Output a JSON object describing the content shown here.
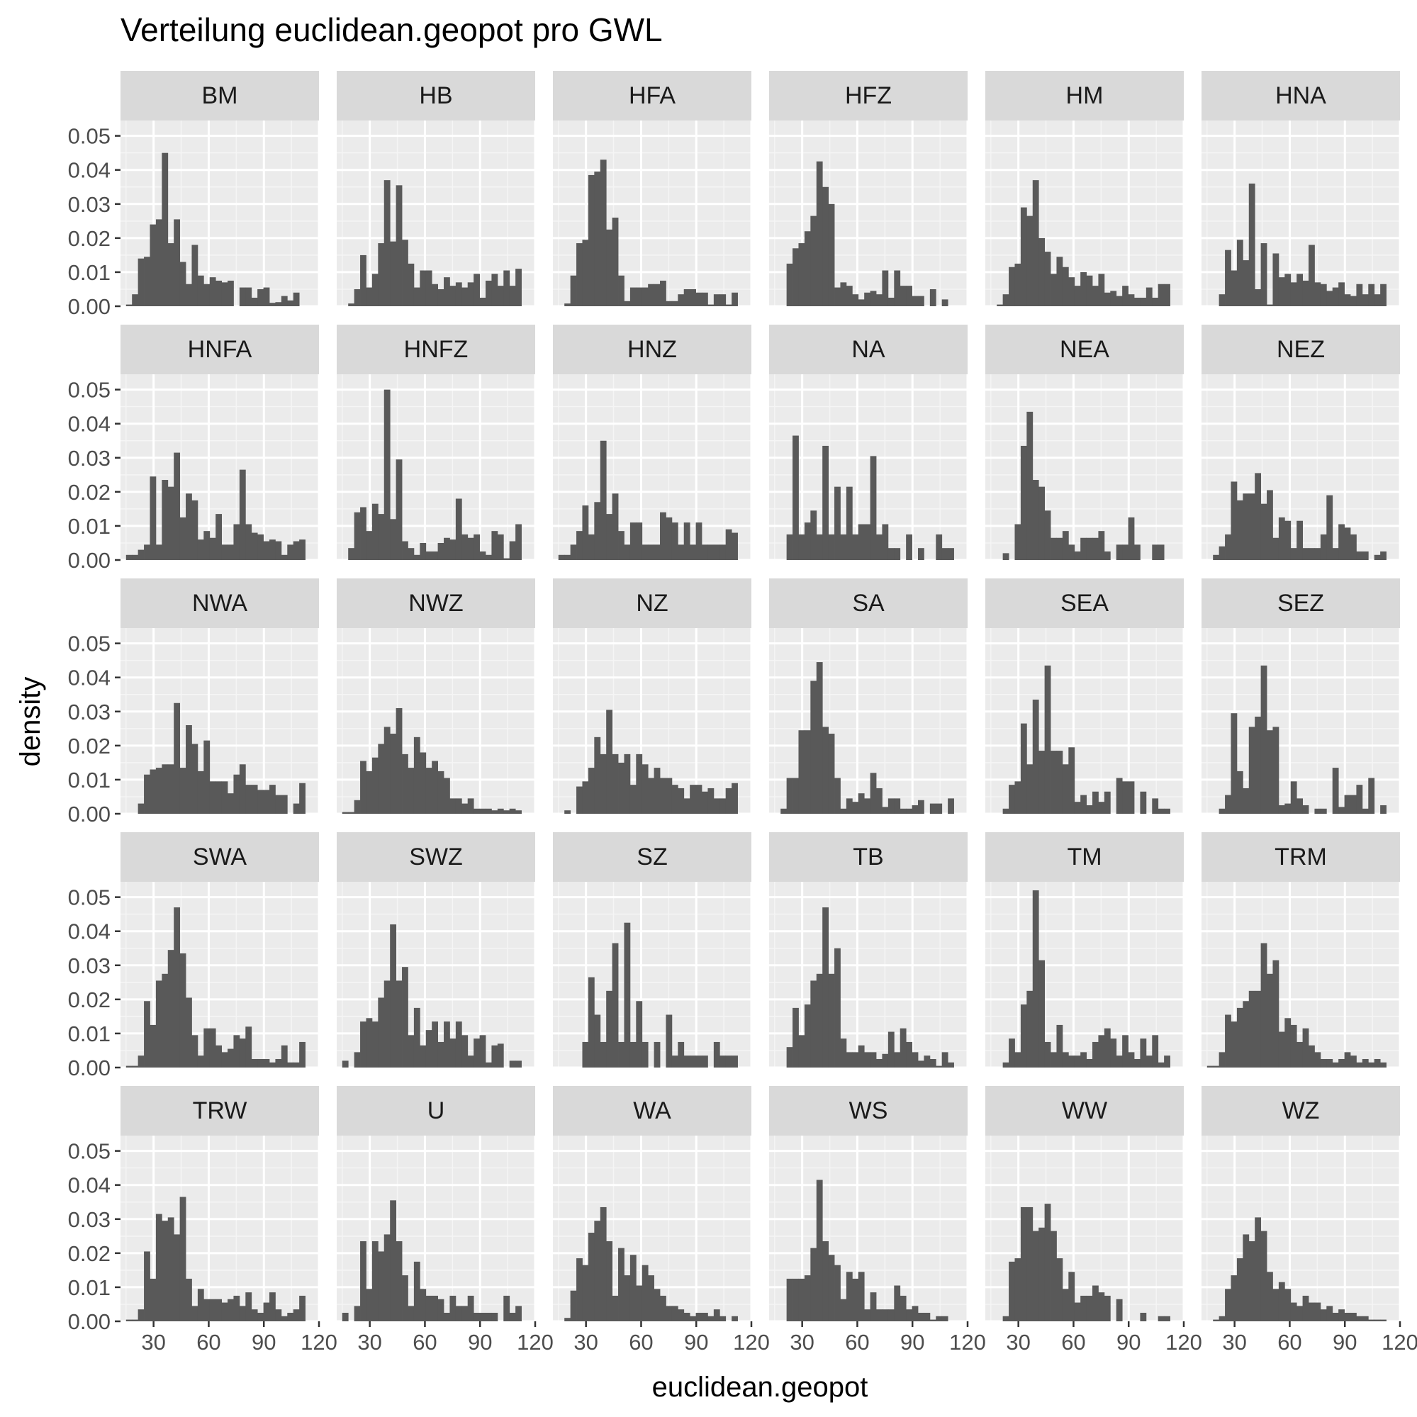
{
  "chart_data": {
    "type": "histogram-facets",
    "title": "Verteilung euclidean.geopot pro GWL",
    "xlabel": "euclidean.geopot",
    "ylabel": "density",
    "xlim": [
      12,
      120
    ],
    "ylim": [
      0,
      0.05
    ],
    "x_ticks": [
      30,
      60,
      90,
      120
    ],
    "x_tick_labels": [
      "30",
      "60",
      "90",
      "120"
    ],
    "y_ticks": [
      0,
      0.01,
      0.02,
      0.03,
      0.04,
      0.05
    ],
    "y_tick_labels": [
      "0.00",
      "0.01",
      "0.02",
      "0.03",
      "0.04",
      "0.05"
    ],
    "bins": {
      "start": 15,
      "width": 3.25,
      "count": 30
    },
    "bar_color": "#595959",
    "panel_color": "#ebebeb",
    "strip_color": "#d9d9d9",
    "facets": [
      {
        "label": "BM",
        "densities": [
          0.0005,
          0.0035,
          0.014,
          0.0145,
          0.024,
          0.0255,
          0.045,
          0.0185,
          0.0255,
          0.013,
          0.0065,
          0.018,
          0.009,
          0.0065,
          0.0085,
          0.0075,
          0.007,
          0.0075,
          0,
          0.0055,
          0.0055,
          0.0025,
          0.005,
          0.0055,
          0.001,
          0.0012,
          0.003,
          0.0017,
          0.004,
          0
        ]
      },
      {
        "label": "HB",
        "densities": [
          0,
          0.0008,
          0.005,
          0.015,
          0.0055,
          0.0095,
          0.0185,
          0.037,
          0.019,
          0.0355,
          0.0195,
          0.0125,
          0.0055,
          0.0105,
          0.0105,
          0.0065,
          0.005,
          0.0085,
          0.006,
          0.007,
          0.0055,
          0.007,
          0.0095,
          0.0025,
          0.0075,
          0.0095,
          0.006,
          0.0105,
          0.006,
          0.011
        ]
      },
      {
        "label": "HFA",
        "densities": [
          0,
          0.0008,
          0.009,
          0.0185,
          0.0195,
          0.0385,
          0.0395,
          0.043,
          0.0225,
          0.026,
          0.009,
          0.0015,
          0.0055,
          0.0055,
          0.0055,
          0.0065,
          0.0065,
          0.0075,
          0.0015,
          0.0015,
          0.0035,
          0.005,
          0.005,
          0.004,
          0.004,
          0.0005,
          0.0035,
          0.0035,
          0.0005,
          0.004
        ]
      },
      {
        "label": "HFZ",
        "densities": [
          0,
          0,
          0.0125,
          0.017,
          0.0185,
          0.022,
          0.0265,
          0.0425,
          0.035,
          0.03,
          0.0055,
          0.007,
          0.006,
          0.0035,
          0.002,
          0.004,
          0.0045,
          0.0035,
          0.0105,
          0.0025,
          0.0105,
          0.006,
          0.006,
          0.003,
          0.003,
          0,
          0.005,
          0,
          0.002,
          0
        ]
      },
      {
        "label": "HM",
        "densities": [
          0,
          0.0005,
          0.0035,
          0.0115,
          0.0125,
          0.029,
          0.0265,
          0.037,
          0.02,
          0.016,
          0.0095,
          0.0145,
          0.0115,
          0.0085,
          0.006,
          0.01,
          0.009,
          0.006,
          0.0095,
          0.004,
          0.0045,
          0.003,
          0.006,
          0.0035,
          0.0025,
          0.0025,
          0.0055,
          0.0025,
          0.0065,
          0.0065
        ]
      },
      {
        "label": "HNA",
        "densities": [
          0,
          0,
          0.0035,
          0.0165,
          0.0105,
          0.0195,
          0.0135,
          0.036,
          0.005,
          0.0185,
          0.0005,
          0.0155,
          0.0085,
          0.0095,
          0.007,
          0.0095,
          0.0075,
          0.018,
          0.007,
          0.0065,
          0.0045,
          0.0055,
          0.007,
          0.0035,
          0.003,
          0.0065,
          0.0035,
          0.0065,
          0.0035,
          0.0065
        ]
      },
      {
        "label": "HNFA",
        "densities": [
          0.0015,
          0.0015,
          0.003,
          0.0045,
          0.0245,
          0.0045,
          0.0235,
          0.0215,
          0.0315,
          0.0125,
          0.0195,
          0.0175,
          0.006,
          0.0085,
          0.0065,
          0.0135,
          0.0045,
          0.0045,
          0.0105,
          0.0265,
          0.0105,
          0.008,
          0.0075,
          0.0055,
          0.006,
          0.0055,
          0.0015,
          0.0045,
          0.0055,
          0.006
        ]
      },
      {
        "label": "HNFZ",
        "densities": [
          0,
          0.0035,
          0.014,
          0.0155,
          0.0085,
          0.0165,
          0.0135,
          0.05,
          0.012,
          0.0295,
          0.0055,
          0.0035,
          0.0015,
          0.005,
          0.0025,
          0.0025,
          0.005,
          0.0065,
          0.006,
          0.018,
          0.0075,
          0.0065,
          0.0075,
          0.0025,
          0.0015,
          0.0085,
          0.0075,
          0.0005,
          0.0055,
          0.0105
        ]
      },
      {
        "label": "HNZ",
        "densities": [
          0.0015,
          0.0015,
          0.0045,
          0.0085,
          0.016,
          0.0075,
          0.017,
          0.035,
          0.0135,
          0.0195,
          0.0085,
          0.0045,
          0.011,
          0.011,
          0.0045,
          0.0045,
          0.0045,
          0.014,
          0.0125,
          0.011,
          0.0045,
          0.011,
          0.0045,
          0.011,
          0.0045,
          0.0045,
          0.0045,
          0.0045,
          0.009,
          0.008
        ]
      },
      {
        "label": "NA",
        "densities": [
          0,
          0,
          0.0075,
          0.0365,
          0.0075,
          0.011,
          0.0145,
          0.0075,
          0.0335,
          0.0075,
          0.0215,
          0.0075,
          0.0215,
          0.0075,
          0.0105,
          0.0105,
          0.0305,
          0.0075,
          0.0105,
          0.0035,
          0.0035,
          0,
          0.0075,
          0,
          0.0035,
          0,
          0,
          0.0075,
          0.0035,
          0.0035
        ]
      },
      {
        "label": "NEA",
        "densities": [
          0,
          0,
          0.002,
          0,
          0.0105,
          0.0335,
          0.0435,
          0.0235,
          0.0215,
          0.0145,
          0.0065,
          0.0065,
          0.0085,
          0.0045,
          0.0025,
          0.0065,
          0.0065,
          0.0065,
          0.0085,
          0.0025,
          0,
          0.0045,
          0.0045,
          0.0125,
          0.0045,
          0,
          0,
          0.0045,
          0.0045,
          0
        ]
      },
      {
        "label": "NEZ",
        "densities": [
          0,
          0.0015,
          0.004,
          0.0075,
          0.023,
          0.0175,
          0.0195,
          0.0195,
          0.0255,
          0.0165,
          0.0205,
          0.0065,
          0.0125,
          0.0115,
          0.0035,
          0.0115,
          0.0035,
          0.0035,
          0.0035,
          0.0075,
          0.019,
          0.0035,
          0.0105,
          0.0095,
          0.0075,
          0.0025,
          0.0025,
          0,
          0.0015,
          0.0025
        ]
      },
      {
        "label": "NWA",
        "densities": [
          0,
          0,
          0.003,
          0.0115,
          0.013,
          0.0135,
          0.0145,
          0.0145,
          0.0325,
          0.0135,
          0.026,
          0.0205,
          0.0125,
          0.0215,
          0.0095,
          0.0095,
          0.0095,
          0.006,
          0.0115,
          0.0145,
          0.0085,
          0.0085,
          0.007,
          0.007,
          0.0085,
          0.0055,
          0.0055,
          0,
          0.003,
          0.009
        ]
      },
      {
        "label": "NWZ",
        "densities": [
          0.0005,
          0.0005,
          0.004,
          0.0155,
          0.0125,
          0.0165,
          0.0205,
          0.0255,
          0.0235,
          0.031,
          0.0175,
          0.0135,
          0.0225,
          0.018,
          0.0135,
          0.0155,
          0.0125,
          0.0105,
          0.0045,
          0.0045,
          0.003,
          0.0045,
          0.0015,
          0.0015,
          0.0015,
          0.001,
          0.0015,
          0.001,
          0.0015,
          0.001
        ]
      },
      {
        "label": "NZ",
        "densities": [
          0,
          0.001,
          0,
          0.008,
          0.0095,
          0.0135,
          0.0225,
          0.0175,
          0.0305,
          0.0175,
          0.015,
          0.0175,
          0.0085,
          0.0175,
          0.0145,
          0.0105,
          0.0135,
          0.0105,
          0.0105,
          0.0085,
          0.0075,
          0.0045,
          0.0085,
          0.0085,
          0.0065,
          0.0075,
          0.0045,
          0.0045,
          0.0075,
          0.009
        ]
      },
      {
        "label": "SA",
        "densities": [
          0,
          0.0015,
          0.0105,
          0.0105,
          0.0245,
          0.0245,
          0.039,
          0.0445,
          0.0255,
          0.0235,
          0.0105,
          0.0015,
          0.0045,
          0.0035,
          0.006,
          0.0045,
          0.012,
          0.0075,
          0.002,
          0.0045,
          0.0045,
          0.0015,
          0.0015,
          0.0025,
          0.004,
          0,
          0.003,
          0.003,
          0,
          0.0045
        ]
      },
      {
        "label": "SEA",
        "densities": [
          0,
          0,
          0.0015,
          0.0085,
          0.0095,
          0.0265,
          0.0145,
          0.0335,
          0.0185,
          0.0435,
          0.0185,
          0.0185,
          0.0145,
          0.0195,
          0.0035,
          0.0055,
          0.0025,
          0.0065,
          0.0035,
          0.0065,
          0,
          0.0105,
          0.0095,
          0.0095,
          0,
          0.0065,
          0,
          0.0045,
          0.0015,
          0.0015
        ]
      },
      {
        "label": "SEZ",
        "densities": [
          0,
          0,
          0.0015,
          0.0055,
          0.0295,
          0.0125,
          0.0075,
          0.0255,
          0.0285,
          0.0435,
          0.0245,
          0.0255,
          0.0025,
          0.003,
          0.0095,
          0.0045,
          0.0025,
          0,
          0.0015,
          0.0015,
          0,
          0.0135,
          0.002,
          0.0055,
          0.0055,
          0.0085,
          0.0015,
          0.0105,
          0,
          0.0025
        ]
      },
      {
        "label": "SWA",
        "densities": [
          0.0005,
          0.0005,
          0.0035,
          0.0195,
          0.0125,
          0.0255,
          0.0275,
          0.0345,
          0.047,
          0.0335,
          0.0205,
          0.0095,
          0.0035,
          0.0115,
          0.0115,
          0.0065,
          0.0045,
          0.0055,
          0.0095,
          0.0085,
          0.012,
          0.0025,
          0.0025,
          0.0025,
          0.0015,
          0.0025,
          0.0065,
          0.0015,
          0.0015,
          0.0075
        ]
      },
      {
        "label": "SWZ",
        "densities": [
          0.002,
          0,
          0.0045,
          0.0135,
          0.0145,
          0.0135,
          0.0205,
          0.0255,
          0.042,
          0.0255,
          0.0295,
          0.0095,
          0.0175,
          0.0065,
          0.011,
          0.0135,
          0.0075,
          0.0135,
          0.0085,
          0.0135,
          0.0095,
          0.0035,
          0.0085,
          0.0095,
          0.0015,
          0.0065,
          0.007,
          0,
          0.002,
          0.002
        ]
      },
      {
        "label": "SZ",
        "densities": [
          0,
          0,
          0,
          0,
          0.0075,
          0.0265,
          0.0155,
          0.0075,
          0.0225,
          0.0365,
          0.0075,
          0.0425,
          0.0075,
          0.0195,
          0.0075,
          0,
          0.0075,
          0,
          0.0155,
          0.0035,
          0.0075,
          0.0035,
          0.0035,
          0.0035,
          0.0035,
          0,
          0.0075,
          0.0035,
          0.0035,
          0.0035
        ]
      },
      {
        "label": "TB",
        "densities": [
          0,
          0,
          0.006,
          0.0175,
          0.0095,
          0.0185,
          0.0255,
          0.0275,
          0.047,
          0.0275,
          0.035,
          0.0085,
          0.0045,
          0.0045,
          0.0065,
          0.0045,
          0.0045,
          0.0025,
          0.004,
          0.0105,
          0.0045,
          0.0115,
          0.0075,
          0.0045,
          0.002,
          0.0035,
          0.0025,
          0.0005,
          0.0045,
          0.0015
        ]
      },
      {
        "label": "TM",
        "densities": [
          0,
          0,
          0.0015,
          0.0085,
          0.0045,
          0.0185,
          0.0225,
          0.052,
          0.0315,
          0.0075,
          0.0045,
          0.0125,
          0.0045,
          0.0035,
          0.0035,
          0.0045,
          0.0025,
          0.0075,
          0.0095,
          0.0115,
          0.0085,
          0.0035,
          0.0095,
          0.0045,
          0.0025,
          0.0085,
          0.0035,
          0.0095,
          0.0015,
          0.0035
        ]
      },
      {
        "label": "TRM",
        "densities": [
          0.0005,
          0.0005,
          0.0045,
          0.0155,
          0.0135,
          0.0175,
          0.0195,
          0.0225,
          0.0225,
          0.0365,
          0.0275,
          0.0315,
          0.0105,
          0.0145,
          0.0125,
          0.0075,
          0.0115,
          0.0065,
          0.0045,
          0.0025,
          0.0025,
          0.0015,
          0.0025,
          0.0045,
          0.0035,
          0.0015,
          0.0025,
          0.0015,
          0.0025,
          0.0015
        ]
      },
      {
        "label": "TRW",
        "densities": [
          0.0005,
          0.0005,
          0.0035,
          0.0205,
          0.0125,
          0.0315,
          0.0295,
          0.0305,
          0.0255,
          0.0365,
          0.0125,
          0.0045,
          0.0095,
          0.0065,
          0.0065,
          0.0065,
          0.0055,
          0.0065,
          0.0075,
          0.0045,
          0.0085,
          0.0035,
          0.0025,
          0.0055,
          0.0085,
          0.0035,
          0.0015,
          0.0025,
          0.0035,
          0.0075
        ]
      },
      {
        "label": "U",
        "densities": [
          0.0025,
          0,
          0.0045,
          0.0235,
          0.0095,
          0.0235,
          0.0205,
          0.0255,
          0.0355,
          0.0235,
          0.0135,
          0.0045,
          0.0175,
          0.0095,
          0.0075,
          0.0075,
          0.0065,
          0.0025,
          0.0075,
          0.0045,
          0.0045,
          0.0075,
          0.0025,
          0.0025,
          0.0025,
          0.0025,
          0,
          0.0075,
          0.0025,
          0.0045
        ]
      },
      {
        "label": "WA",
        "densities": [
          0,
          0.001,
          0.009,
          0.0185,
          0.0165,
          0.026,
          0.0295,
          0.0335,
          0.0235,
          0.0075,
          0.0215,
          0.0135,
          0.0195,
          0.0105,
          0.0165,
          0.0135,
          0.0095,
          0.0075,
          0.0045,
          0.0045,
          0.0035,
          0.0025,
          0.0015,
          0.0025,
          0.0025,
          0.0015,
          0.0035,
          0.0015,
          0,
          0.0015
        ]
      },
      {
        "label": "WS",
        "densities": [
          0,
          0,
          0.0125,
          0.0125,
          0.0125,
          0.0135,
          0.0215,
          0.0415,
          0.0235,
          0.0195,
          0.0165,
          0.0065,
          0.0145,
          0.0125,
          0.0145,
          0.0035,
          0.0085,
          0.0035,
          0.0035,
          0.0035,
          0.0105,
          0.0075,
          0.0035,
          0.0045,
          0.0025,
          0.0025,
          0.0005,
          0.0015,
          0.0015,
          0
        ]
      },
      {
        "label": "WW",
        "densities": [
          0,
          0,
          0.0015,
          0.0175,
          0.0185,
          0.0335,
          0.0335,
          0.0265,
          0.0275,
          0.0345,
          0.0265,
          0.0185,
          0.0095,
          0.0145,
          0.0055,
          0.0075,
          0.0075,
          0.0105,
          0.0085,
          0.0075,
          0,
          0.0065,
          0,
          0,
          0,
          0.0025,
          0,
          0,
          0.0015,
          0.0015
        ]
      },
      {
        "label": "WZ",
        "densities": [
          0,
          0.0005,
          0.0015,
          0.0095,
          0.0135,
          0.0185,
          0.0255,
          0.0235,
          0.0305,
          0.0265,
          0.0145,
          0.0095,
          0.0115,
          0.0095,
          0.0055,
          0.0045,
          0.0075,
          0.0055,
          0.0055,
          0.0035,
          0.0045,
          0.0025,
          0.0035,
          0.0025,
          0.0025,
          0.0015,
          0.0015,
          0.0005,
          0.0005,
          0.0005
        ]
      }
    ]
  }
}
